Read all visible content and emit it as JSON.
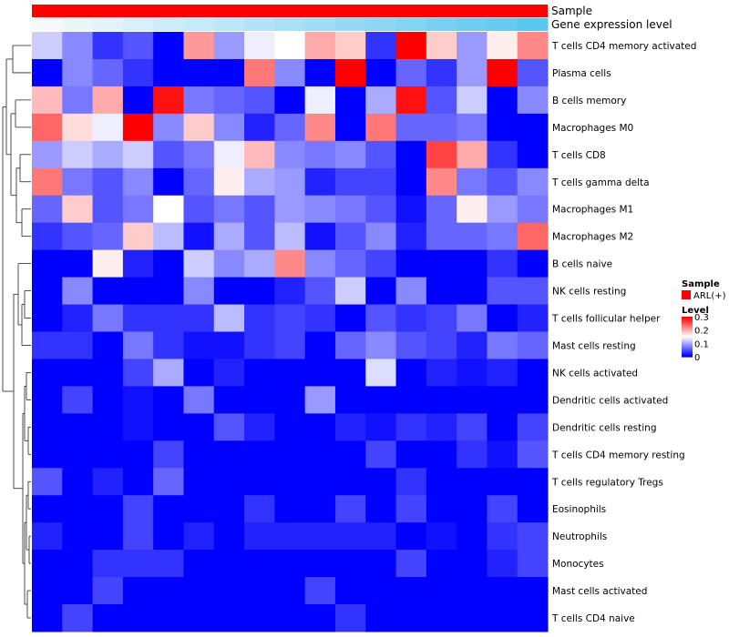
{
  "chart_data": {
    "type": "heatmap",
    "title": "",
    "annotations": [
      {
        "name": "Sample",
        "color": "#ff0000"
      },
      {
        "name": "Gene expression level",
        "gradient_from": "#f5f9fc",
        "gradient_to": "#5bc8f0"
      }
    ],
    "rows": [
      "T cells CD4 memory activated",
      "Plasma cells",
      "B cells memory",
      "Macrophages M0",
      "T cells CD8",
      "T cells gamma delta",
      "Macrophages M1",
      "Macrophages M2",
      "B cells naive",
      "NK cells resting",
      "T cells follicular helper",
      "Mast cells resting",
      "NK cells activated",
      "Dendritic cells activated",
      "Dendritic cells resting",
      "T cells CD4 memory resting",
      "T cells regulatory  Tregs",
      "Eosinophils",
      "Neutrophils",
      "Monocytes",
      "Mast cells activated",
      "T cells CD4 naive"
    ],
    "values": [
      [
        0.12,
        0.08,
        0.03,
        0.05,
        0.0,
        0.21,
        0.09,
        0.14,
        0.15,
        0.2,
        0.18,
        0.03,
        0.3,
        0.18,
        0.09,
        0.16,
        0.22
      ],
      [
        0.0,
        0.08,
        0.06,
        0.03,
        0.0,
        0.0,
        0.0,
        0.23,
        0.08,
        0.0,
        0.3,
        0.0,
        0.06,
        0.03,
        0.09,
        0.3,
        0.05
      ],
      [
        0.19,
        0.07,
        0.2,
        0.0,
        0.29,
        0.07,
        0.06,
        0.05,
        0.0,
        0.14,
        0.0,
        0.1,
        0.29,
        0.05,
        0.12,
        0.0,
        0.08
      ],
      [
        0.24,
        0.17,
        0.14,
        0.3,
        0.08,
        0.18,
        0.08,
        0.02,
        0.06,
        0.22,
        0.0,
        0.23,
        0.06,
        0.06,
        0.07,
        0.0,
        0.0
      ],
      [
        0.09,
        0.12,
        0.1,
        0.12,
        0.05,
        0.07,
        0.14,
        0.19,
        0.08,
        0.07,
        0.08,
        0.05,
        0.0,
        0.26,
        0.2,
        0.03,
        0.0
      ],
      [
        0.23,
        0.07,
        0.05,
        0.08,
        0.0,
        0.06,
        0.16,
        0.1,
        0.09,
        0.02,
        0.04,
        0.04,
        0.0,
        0.22,
        0.07,
        0.05,
        0.08
      ],
      [
        0.06,
        0.18,
        0.05,
        0.07,
        0.15,
        0.05,
        0.07,
        0.05,
        0.09,
        0.08,
        0.07,
        0.05,
        0.01,
        0.06,
        0.16,
        0.09,
        0.07
      ],
      [
        0.03,
        0.05,
        0.06,
        0.18,
        0.11,
        0.01,
        0.1,
        0.05,
        0.11,
        0.01,
        0.05,
        0.08,
        0.02,
        0.06,
        0.06,
        0.07,
        0.24
      ],
      [
        0.0,
        0.0,
        0.16,
        0.02,
        0.0,
        0.12,
        0.08,
        0.1,
        0.22,
        0.08,
        0.06,
        0.04,
        0.0,
        0.0,
        0.0,
        0.03,
        0.0
      ],
      [
        0.0,
        0.08,
        0.0,
        0.0,
        0.0,
        0.08,
        0.0,
        0.0,
        0.02,
        0.05,
        0.12,
        0.0,
        0.08,
        0.0,
        0.0,
        0.05,
        0.05
      ],
      [
        0.0,
        0.02,
        0.07,
        0.03,
        0.03,
        0.03,
        0.11,
        0.03,
        0.04,
        0.03,
        0.0,
        0.05,
        0.03,
        0.04,
        0.07,
        0.0,
        0.02
      ],
      [
        0.03,
        0.03,
        0.0,
        0.07,
        0.03,
        0.01,
        0.01,
        0.03,
        0.04,
        0.0,
        0.06,
        0.08,
        0.05,
        0.04,
        0.02,
        0.07,
        0.06
      ],
      [
        0.0,
        0.0,
        0.0,
        0.04,
        0.1,
        0.0,
        0.02,
        0.0,
        0.0,
        0.0,
        0.0,
        0.13,
        0.0,
        0.02,
        0.01,
        0.02,
        0.0
      ],
      [
        0.0,
        0.04,
        0.0,
        0.01,
        0.0,
        0.07,
        0.0,
        0.0,
        0.0,
        0.09,
        0.0,
        0.0,
        0.0,
        0.0,
        0.0,
        0.0,
        0.0
      ],
      [
        0.0,
        0.0,
        0.0,
        0.01,
        0.0,
        0.0,
        0.05,
        0.02,
        0.0,
        0.0,
        0.02,
        0.01,
        0.03,
        0.02,
        0.04,
        0.0,
        0.04
      ],
      [
        0.0,
        0.0,
        0.0,
        0.0,
        0.04,
        0.0,
        0.0,
        0.0,
        0.0,
        0.0,
        0.0,
        0.04,
        0.0,
        0.0,
        0.03,
        0.01,
        0.05
      ],
      [
        0.05,
        0.0,
        0.02,
        0.0,
        0.06,
        0.0,
        0.0,
        0.0,
        0.0,
        0.0,
        0.0,
        0.0,
        0.03,
        0.0,
        0.0,
        0.0,
        0.0
      ],
      [
        0.0,
        0.0,
        0.0,
        0.04,
        0.0,
        0.0,
        0.0,
        0.03,
        0.0,
        0.0,
        0.04,
        0.0,
        0.04,
        0.0,
        0.0,
        0.04,
        0.0
      ],
      [
        0.02,
        0.0,
        0.0,
        0.04,
        0.0,
        0.02,
        0.0,
        0.02,
        0.02,
        0.02,
        0.02,
        0.02,
        0.0,
        0.01,
        0.0,
        0.03,
        0.04
      ],
      [
        0.0,
        0.0,
        0.03,
        0.03,
        0.03,
        0.0,
        0.0,
        0.0,
        0.0,
        0.0,
        0.0,
        0.0,
        0.04,
        0.0,
        0.0,
        0.02,
        0.04
      ],
      [
        0.0,
        0.0,
        0.04,
        0.0,
        0.0,
        0.0,
        0.0,
        0.0,
        0.0,
        0.04,
        0.0,
        0.0,
        0.0,
        0.0,
        0.0,
        0.0,
        0.0
      ],
      [
        0.0,
        0.04,
        0.0,
        0.0,
        0.0,
        0.0,
        0.0,
        0.0,
        0.0,
        0.0,
        0.03,
        0.0,
        0.0,
        0.0,
        0.0,
        0.0,
        0.0
      ]
    ],
    "color_scale": {
      "min": 0,
      "mid": 0.15,
      "max": 0.3,
      "low": "#0000ff",
      "midcolor": "#ffffff",
      "high": "#ff0000"
    },
    "legend": {
      "sample_title": "Sample",
      "sample_item": "ARL(+)",
      "sample_color": "#ff0000",
      "level_title": "Level",
      "ticks": [
        "0.3",
        "0.2",
        "0.1",
        "0"
      ],
      "tick_values": [
        0.3,
        0.2,
        0.1,
        0
      ]
    }
  }
}
